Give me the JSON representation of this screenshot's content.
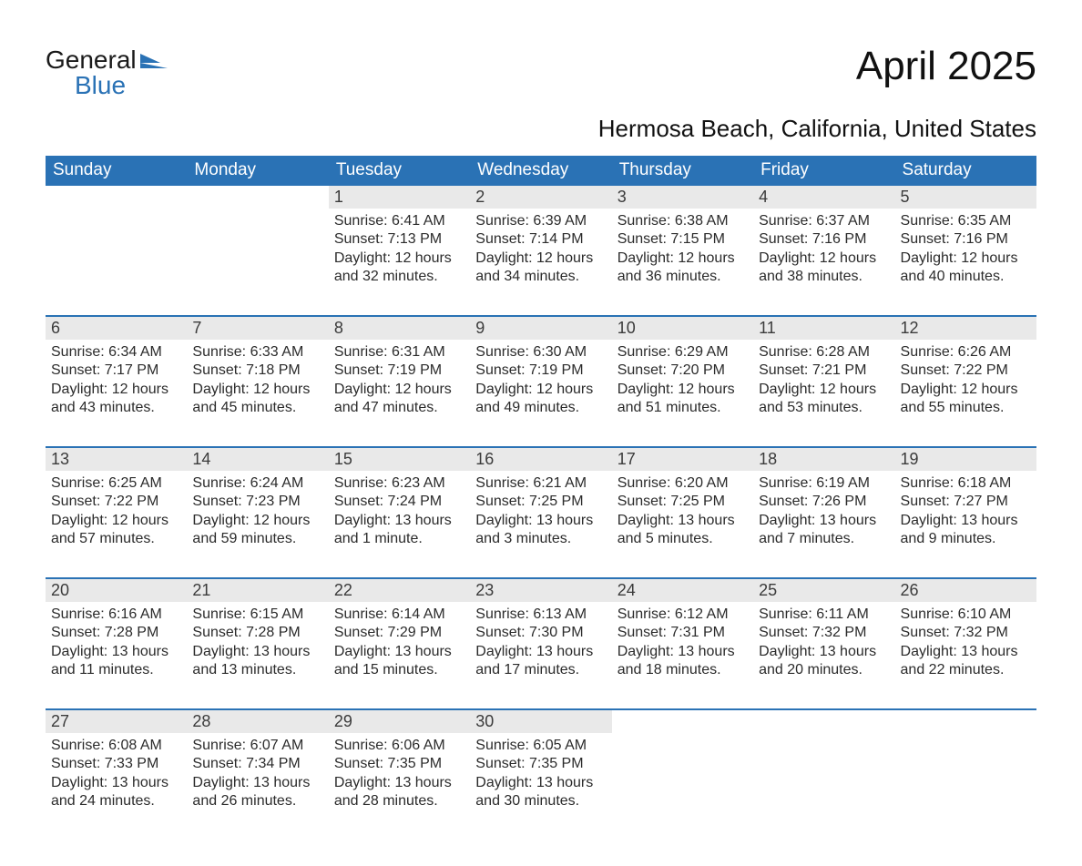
{
  "logo": {
    "line1": "General",
    "line2": "Blue"
  },
  "title": "April 2025",
  "subtitle": "Hermosa Beach, California, United States",
  "columns": [
    "Sunday",
    "Monday",
    "Tuesday",
    "Wednesday",
    "Thursday",
    "Friday",
    "Saturday"
  ],
  "colors": {
    "header_bg": "#2a72b5",
    "header_text": "#ffffff",
    "daynum_bg": "#e9e9e9",
    "border": "#2a72b5",
    "text": "#2b2b2b",
    "background": "#ffffff"
  },
  "weeks": [
    [
      null,
      null,
      {
        "num": "1",
        "sunrise": "Sunrise: 6:41 AM",
        "sunset": "Sunset: 7:13 PM",
        "daylight": "Daylight: 12 hours and 32 minutes."
      },
      {
        "num": "2",
        "sunrise": "Sunrise: 6:39 AM",
        "sunset": "Sunset: 7:14 PM",
        "daylight": "Daylight: 12 hours and 34 minutes."
      },
      {
        "num": "3",
        "sunrise": "Sunrise: 6:38 AM",
        "sunset": "Sunset: 7:15 PM",
        "daylight": "Daylight: 12 hours and 36 minutes."
      },
      {
        "num": "4",
        "sunrise": "Sunrise: 6:37 AM",
        "sunset": "Sunset: 7:16 PM",
        "daylight": "Daylight: 12 hours and 38 minutes."
      },
      {
        "num": "5",
        "sunrise": "Sunrise: 6:35 AM",
        "sunset": "Sunset: 7:16 PM",
        "daylight": "Daylight: 12 hours and 40 minutes."
      }
    ],
    [
      {
        "num": "6",
        "sunrise": "Sunrise: 6:34 AM",
        "sunset": "Sunset: 7:17 PM",
        "daylight": "Daylight: 12 hours and 43 minutes."
      },
      {
        "num": "7",
        "sunrise": "Sunrise: 6:33 AM",
        "sunset": "Sunset: 7:18 PM",
        "daylight": "Daylight: 12 hours and 45 minutes."
      },
      {
        "num": "8",
        "sunrise": "Sunrise: 6:31 AM",
        "sunset": "Sunset: 7:19 PM",
        "daylight": "Daylight: 12 hours and 47 minutes."
      },
      {
        "num": "9",
        "sunrise": "Sunrise: 6:30 AM",
        "sunset": "Sunset: 7:19 PM",
        "daylight": "Daylight: 12 hours and 49 minutes."
      },
      {
        "num": "10",
        "sunrise": "Sunrise: 6:29 AM",
        "sunset": "Sunset: 7:20 PM",
        "daylight": "Daylight: 12 hours and 51 minutes."
      },
      {
        "num": "11",
        "sunrise": "Sunrise: 6:28 AM",
        "sunset": "Sunset: 7:21 PM",
        "daylight": "Daylight: 12 hours and 53 minutes."
      },
      {
        "num": "12",
        "sunrise": "Sunrise: 6:26 AM",
        "sunset": "Sunset: 7:22 PM",
        "daylight": "Daylight: 12 hours and 55 minutes."
      }
    ],
    [
      {
        "num": "13",
        "sunrise": "Sunrise: 6:25 AM",
        "sunset": "Sunset: 7:22 PM",
        "daylight": "Daylight: 12 hours and 57 minutes."
      },
      {
        "num": "14",
        "sunrise": "Sunrise: 6:24 AM",
        "sunset": "Sunset: 7:23 PM",
        "daylight": "Daylight: 12 hours and 59 minutes."
      },
      {
        "num": "15",
        "sunrise": "Sunrise: 6:23 AM",
        "sunset": "Sunset: 7:24 PM",
        "daylight": "Daylight: 13 hours and 1 minute."
      },
      {
        "num": "16",
        "sunrise": "Sunrise: 6:21 AM",
        "sunset": "Sunset: 7:25 PM",
        "daylight": "Daylight: 13 hours and 3 minutes."
      },
      {
        "num": "17",
        "sunrise": "Sunrise: 6:20 AM",
        "sunset": "Sunset: 7:25 PM",
        "daylight": "Daylight: 13 hours and 5 minutes."
      },
      {
        "num": "18",
        "sunrise": "Sunrise: 6:19 AM",
        "sunset": "Sunset: 7:26 PM",
        "daylight": "Daylight: 13 hours and 7 minutes."
      },
      {
        "num": "19",
        "sunrise": "Sunrise: 6:18 AM",
        "sunset": "Sunset: 7:27 PM",
        "daylight": "Daylight: 13 hours and 9 minutes."
      }
    ],
    [
      {
        "num": "20",
        "sunrise": "Sunrise: 6:16 AM",
        "sunset": "Sunset: 7:28 PM",
        "daylight": "Daylight: 13 hours and 11 minutes."
      },
      {
        "num": "21",
        "sunrise": "Sunrise: 6:15 AM",
        "sunset": "Sunset: 7:28 PM",
        "daylight": "Daylight: 13 hours and 13 minutes."
      },
      {
        "num": "22",
        "sunrise": "Sunrise: 6:14 AM",
        "sunset": "Sunset: 7:29 PM",
        "daylight": "Daylight: 13 hours and 15 minutes."
      },
      {
        "num": "23",
        "sunrise": "Sunrise: 6:13 AM",
        "sunset": "Sunset: 7:30 PM",
        "daylight": "Daylight: 13 hours and 17 minutes."
      },
      {
        "num": "24",
        "sunrise": "Sunrise: 6:12 AM",
        "sunset": "Sunset: 7:31 PM",
        "daylight": "Daylight: 13 hours and 18 minutes."
      },
      {
        "num": "25",
        "sunrise": "Sunrise: 6:11 AM",
        "sunset": "Sunset: 7:32 PM",
        "daylight": "Daylight: 13 hours and 20 minutes."
      },
      {
        "num": "26",
        "sunrise": "Sunrise: 6:10 AM",
        "sunset": "Sunset: 7:32 PM",
        "daylight": "Daylight: 13 hours and 22 minutes."
      }
    ],
    [
      {
        "num": "27",
        "sunrise": "Sunrise: 6:08 AM",
        "sunset": "Sunset: 7:33 PM",
        "daylight": "Daylight: 13 hours and 24 minutes."
      },
      {
        "num": "28",
        "sunrise": "Sunrise: 6:07 AM",
        "sunset": "Sunset: 7:34 PM",
        "daylight": "Daylight: 13 hours and 26 minutes."
      },
      {
        "num": "29",
        "sunrise": "Sunrise: 6:06 AM",
        "sunset": "Sunset: 7:35 PM",
        "daylight": "Daylight: 13 hours and 28 minutes."
      },
      {
        "num": "30",
        "sunrise": "Sunrise: 6:05 AM",
        "sunset": "Sunset: 7:35 PM",
        "daylight": "Daylight: 13 hours and 30 minutes."
      },
      null,
      null,
      null
    ]
  ]
}
